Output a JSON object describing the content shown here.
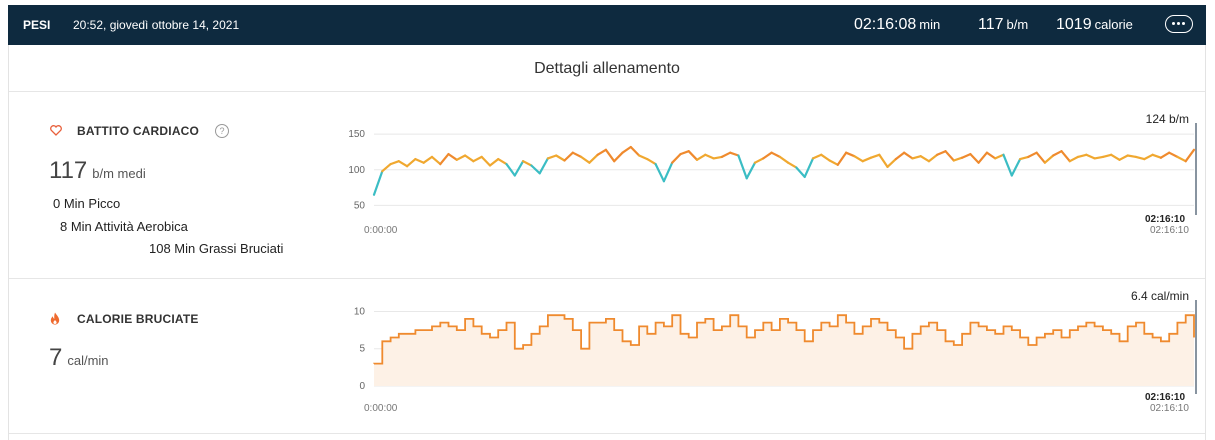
{
  "header": {
    "activity": "PESI",
    "datetime": "20:52, giovedì ottobre 14, 2021",
    "duration_value": "02:16:08",
    "duration_unit": "min",
    "hr_value": "117",
    "hr_unit": "b/m",
    "calories_value": "1019",
    "calories_unit": "calorie",
    "more_icon": "ellipsis-icon"
  },
  "section_title": "Dettagli allenamento",
  "heart_rate": {
    "icon": "heart-icon",
    "title": "BATTITO CARDIACO",
    "help_glyph": "?",
    "average_value": "117",
    "average_unit": "b/m medi",
    "zone_peak": "0 Min Picco",
    "zone_aerobic": "8 Min Attività Aerobica",
    "zone_fat": "108 Min Grassi Bruciati",
    "current_label": "124 b/m",
    "start_time": "0:00:00",
    "end_time": "02:16:10",
    "end_marker": "02:16:10",
    "colors": {
      "fat_burn": "#f0a830",
      "cardio": "#ef8a2e",
      "below": "#3bbdc4"
    }
  },
  "calories": {
    "icon": "flame-icon",
    "title": "CALORIE BRUCIATE",
    "average_value": "7",
    "average_unit": "cal/min",
    "current_label": "6.4 cal/min",
    "start_time": "0:00:00",
    "end_time": "02:16:10",
    "end_marker": "02:16:10",
    "colors": {
      "line": "#ef8a2e",
      "fill": "#fdf1e6"
    }
  },
  "chart_data": [
    {
      "type": "line",
      "title": "BATTITO CARDIACO",
      "ylabel": "b/m",
      "yticks": [
        50,
        100,
        150
      ],
      "ylim": [
        45,
        160
      ],
      "x_range": [
        "0:00:00",
        "02:16:10"
      ],
      "series": [
        {
          "values": [
            65,
            98,
            108,
            112,
            105,
            115,
            110,
            118,
            108,
            122,
            114,
            120,
            112,
            118,
            106,
            115,
            108,
            92,
            112,
            106,
            95,
            116,
            120,
            113,
            124,
            118,
            110,
            121,
            128,
            112,
            124,
            132,
            120,
            115,
            108,
            84,
            110,
            122,
            126,
            114,
            121,
            116,
            118,
            124,
            120,
            88,
            110,
            116,
            124,
            118,
            110,
            103,
            90,
            116,
            121,
            113,
            107,
            124,
            119,
            112,
            117,
            121,
            104,
            115,
            124,
            116,
            119,
            112,
            121,
            126,
            113,
            117,
            122,
            110,
            124,
            116,
            121,
            92,
            115,
            118,
            124,
            110,
            120,
            126,
            112,
            118,
            121,
            116,
            118,
            121,
            114,
            120,
            118,
            115,
            121,
            117,
            124,
            118,
            112,
            128
          ]
        }
      ]
    },
    {
      "type": "line",
      "title": "CALORIE BRUCIATE",
      "ylabel": "cal/min",
      "yticks": [
        0,
        5,
        10
      ],
      "ylim": [
        0,
        11
      ],
      "x_range": [
        "0:00:00",
        "02:16:10"
      ],
      "series": [
        {
          "values": [
            3,
            6,
            6.5,
            7,
            7,
            7.5,
            7.5,
            8,
            8.5,
            8,
            7.5,
            9,
            8,
            7,
            6.5,
            7.5,
            8.5,
            5,
            5.5,
            7,
            8,
            9.5,
            9.5,
            9,
            7.5,
            5,
            8.5,
            8.5,
            9,
            7.5,
            6,
            5.5,
            8,
            7,
            8.5,
            8,
            9.5,
            7,
            6.5,
            8.5,
            9,
            7.5,
            8,
            9.5,
            8,
            6.5,
            7.5,
            8.5,
            7.5,
            9,
            8.5,
            7.5,
            6,
            7.5,
            8.5,
            8,
            9.5,
            8.5,
            7,
            8,
            9,
            8.5,
            7.5,
            6.5,
            5,
            7,
            8,
            8.5,
            7.5,
            6,
            5.5,
            7,
            8.5,
            8,
            7.5,
            7,
            8,
            7.5,
            6.5,
            5.5,
            6.5,
            7,
            7.5,
            6.5,
            7.5,
            8,
            8.5,
            8,
            7.5,
            7,
            6,
            8,
            8.5,
            7,
            6.5,
            6,
            7,
            8.5,
            9.5,
            6.5
          ]
        }
      ]
    }
  ]
}
